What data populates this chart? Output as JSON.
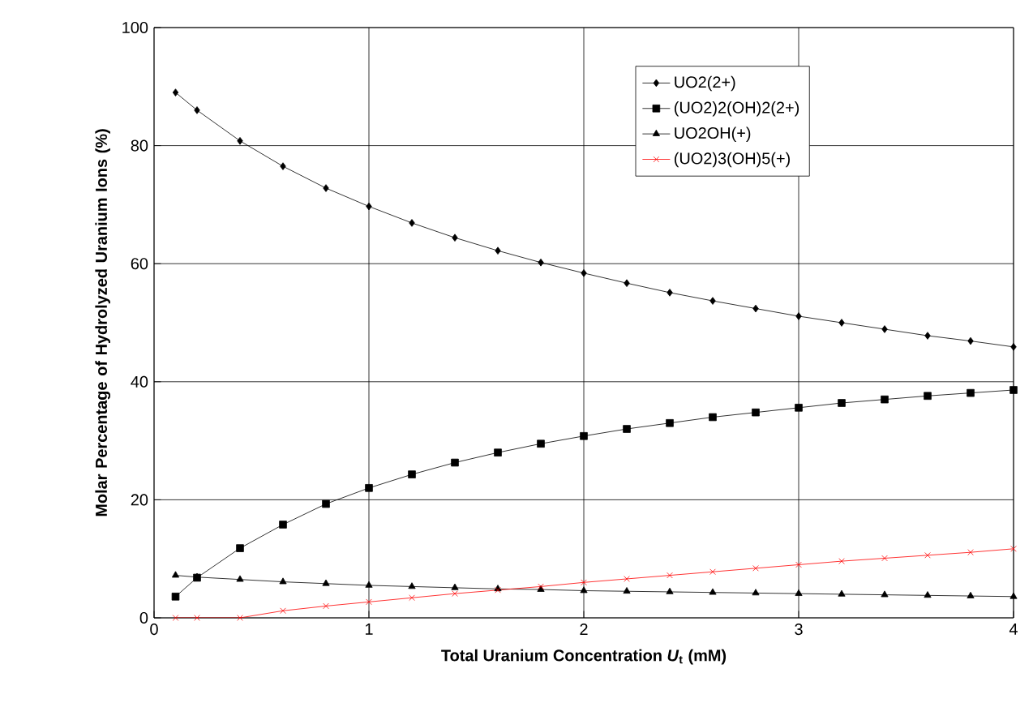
{
  "chart_data": {
    "type": "line",
    "xlabel": "Total Uranium Concentration *U*$_{t}$  (mM)",
    "ylabel": "Molar Percentage of Hydrolyzed Uranium Ions (%)",
    "x": [
      0.1,
      0.2,
      0.4,
      0.6,
      0.8,
      1.0,
      1.2,
      1.4,
      1.6,
      1.8,
      2.0,
      2.2,
      2.4,
      2.6,
      2.8,
      3.0,
      3.2,
      3.4,
      3.6,
      3.8,
      4.0
    ],
    "series": [
      {
        "name": "UO2(2+)",
        "color": "#000000",
        "marker": "diamond",
        "values": [
          89,
          86,
          80.8,
          76.5,
          72.8,
          69.7,
          66.9,
          64.4,
          62.2,
          60.2,
          58.4,
          56.7,
          55.1,
          53.7,
          52.4,
          51.1,
          50.0,
          48.9,
          47.8,
          46.9,
          45.9
        ]
      },
      {
        "name": "(UO2)2(OH)2(2+)",
        "color": "#000000",
        "marker": "square",
        "values": [
          3.6,
          6.8,
          11.8,
          15.8,
          19.3,
          22.0,
          24.3,
          26.3,
          28.0,
          29.5,
          30.8,
          32.0,
          33.0,
          34.0,
          34.8,
          35.6,
          36.4,
          37.0,
          37.6,
          38.1,
          38.6
        ]
      },
      {
        "name": "UO2OH(+)",
        "color": "#000000",
        "marker": "triangle",
        "values": [
          7.2,
          6.9,
          6.5,
          6.1,
          5.8,
          5.5,
          5.3,
          5.1,
          4.9,
          4.8,
          4.6,
          4.5,
          4.4,
          4.3,
          4.2,
          4.1,
          4.0,
          3.9,
          3.8,
          3.7,
          3.6
        ]
      },
      {
        "name": "(UO2)3(OH)5(+)",
        "color": "#ff0000",
        "marker": "cross",
        "values": [
          0,
          0,
          0,
          1.2,
          2.0,
          2.7,
          3.4,
          4.1,
          4.7,
          5.3,
          6.0,
          6.6,
          7.2,
          7.8,
          8.4,
          9.0,
          9.6,
          10.1,
          10.6,
          11.1,
          11.7
        ]
      }
    ],
    "xlim": [
      0,
      4
    ],
    "xticks": [
      0,
      1,
      2,
      3,
      4
    ],
    "ylim": [
      0,
      100
    ],
    "yticks": [
      0,
      20,
      40,
      60,
      80,
      100
    ],
    "grid": true,
    "legend": "top right",
    "line_style": "solid"
  }
}
